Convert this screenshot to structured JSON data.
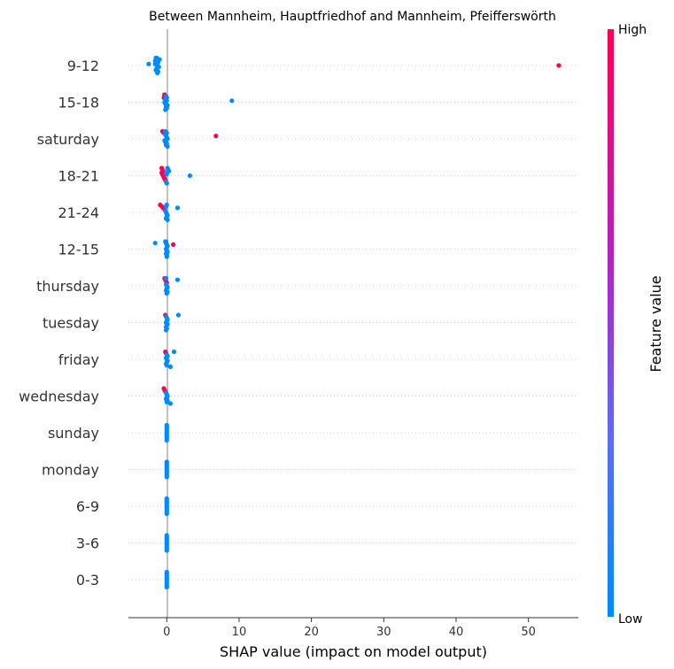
{
  "chart_data": {
    "type": "scatter",
    "subtype": "shap-beeswarm",
    "title": "Between Mannheim, Hauptfriedhof and Mannheim, Pfeifferswörth",
    "xlabel": "SHAP value (impact on model output)",
    "xlim": [
      -5.3,
      56.9
    ],
    "xticks": [
      0,
      10,
      20,
      30,
      40,
      50
    ],
    "colorbar": {
      "high_label": "High",
      "low_label": "Low",
      "title": "Feature value",
      "low_color": "#008bfb",
      "high_color": "#ff0052"
    },
    "features": [
      {
        "name": "9-12",
        "points": [
          [
            -1.5,
            0
          ],
          [
            -1.3,
            0
          ],
          [
            -1.4,
            0
          ],
          [
            -1.2,
            0
          ],
          [
            -1.6,
            0
          ],
          [
            -1.3,
            0
          ],
          [
            -1.1,
            0
          ],
          [
            -1.4,
            0
          ],
          [
            -1.5,
            0
          ],
          [
            -1.2,
            0
          ],
          [
            -1.3,
            0
          ],
          [
            -1.4,
            0
          ],
          [
            -1.0,
            0
          ],
          [
            -1.6,
            0
          ],
          [
            -1.3,
            0
          ],
          [
            -2.5,
            0
          ],
          [
            54.2,
            1
          ]
        ]
      },
      {
        "name": "15-18",
        "points": [
          [
            -0.3,
            1
          ],
          [
            -0.2,
            1
          ],
          [
            -0.4,
            1
          ],
          [
            -0.1,
            0
          ],
          [
            0.0,
            0
          ],
          [
            -0.3,
            0
          ],
          [
            -0.2,
            0
          ],
          [
            0.1,
            0
          ],
          [
            -0.1,
            0
          ],
          [
            0.0,
            0
          ],
          [
            -0.2,
            0
          ],
          [
            -0.3,
            1
          ],
          [
            -0.1,
            0
          ],
          [
            0.0,
            0
          ],
          [
            -0.2,
            0
          ],
          [
            9.0,
            0
          ]
        ]
      },
      {
        "name": "saturday",
        "points": [
          [
            -0.6,
            1
          ],
          [
            -0.4,
            1
          ],
          [
            -0.2,
            0
          ],
          [
            -0.1,
            0
          ],
          [
            0.0,
            0
          ],
          [
            0.1,
            0
          ],
          [
            -0.3,
            0
          ],
          [
            -0.2,
            0
          ],
          [
            0.0,
            0
          ],
          [
            -0.1,
            0
          ],
          [
            0.1,
            0
          ],
          [
            -0.2,
            0
          ],
          [
            0.0,
            0
          ],
          [
            -0.1,
            0
          ],
          [
            6.8,
            1
          ]
        ]
      },
      {
        "name": "18-21",
        "points": [
          [
            -0.7,
            1
          ],
          [
            -0.6,
            1
          ],
          [
            -0.5,
            1
          ],
          [
            -0.7,
            1
          ],
          [
            -0.6,
            1
          ],
          [
            -0.5,
            1
          ],
          [
            -0.4,
            1
          ],
          [
            -0.3,
            1
          ],
          [
            -0.2,
            1
          ],
          [
            -0.1,
            0
          ],
          [
            0.0,
            0
          ],
          [
            0.1,
            0
          ],
          [
            0.2,
            0
          ],
          [
            0.3,
            0
          ],
          [
            -0.1,
            0
          ],
          [
            0.0,
            0
          ],
          [
            3.2,
            0
          ]
        ]
      },
      {
        "name": "21-24",
        "points": [
          [
            -0.9,
            1
          ],
          [
            -0.7,
            1
          ],
          [
            -0.5,
            1
          ],
          [
            -0.3,
            1
          ],
          [
            -0.2,
            0
          ],
          [
            -0.1,
            0
          ],
          [
            0.0,
            0
          ],
          [
            0.1,
            0
          ],
          [
            0.0,
            0
          ],
          [
            -0.1,
            0
          ],
          [
            0.1,
            0
          ],
          [
            0.0,
            0
          ],
          [
            -0.1,
            0
          ],
          [
            1.5,
            0
          ]
        ]
      },
      {
        "name": "12-15",
        "points": [
          [
            -0.2,
            0
          ],
          [
            -0.1,
            0
          ],
          [
            0.0,
            0
          ],
          [
            0.1,
            0
          ],
          [
            0.0,
            0
          ],
          [
            -0.1,
            0
          ],
          [
            0.0,
            0
          ],
          [
            0.1,
            0
          ],
          [
            -0.1,
            0
          ],
          [
            0.0,
            0
          ],
          [
            0.0,
            0
          ],
          [
            -0.1,
            0
          ],
          [
            -1.6,
            0
          ],
          [
            0.9,
            1
          ]
        ]
      },
      {
        "name": "thursday",
        "points": [
          [
            -0.3,
            1
          ],
          [
            -0.2,
            1
          ],
          [
            -0.1,
            1
          ],
          [
            0.0,
            1
          ],
          [
            -0.1,
            0
          ],
          [
            0.0,
            0
          ],
          [
            0.1,
            0
          ],
          [
            0.0,
            0
          ],
          [
            -0.1,
            0
          ],
          [
            0.1,
            0
          ],
          [
            0.0,
            0
          ],
          [
            -0.1,
            0
          ],
          [
            1.5,
            0
          ]
        ]
      },
      {
        "name": "tuesday",
        "points": [
          [
            -0.2,
            1
          ],
          [
            -0.1,
            0
          ],
          [
            0.0,
            0
          ],
          [
            0.1,
            0
          ],
          [
            0.0,
            0
          ],
          [
            -0.1,
            0
          ],
          [
            0.1,
            0
          ],
          [
            0.0,
            0
          ],
          [
            -0.1,
            0
          ],
          [
            0.0,
            0
          ],
          [
            -0.1,
            0
          ],
          [
            1.6,
            0
          ]
        ]
      },
      {
        "name": "friday",
        "points": [
          [
            -0.2,
            1
          ],
          [
            -0.1,
            1
          ],
          [
            0.0,
            0
          ],
          [
            0.1,
            0
          ],
          [
            -0.1,
            0
          ],
          [
            0.0,
            0
          ],
          [
            0.1,
            0
          ],
          [
            0.0,
            0
          ],
          [
            -0.1,
            0
          ],
          [
            0.0,
            0
          ],
          [
            0.5,
            0
          ],
          [
            1.0,
            0
          ]
        ]
      },
      {
        "name": "wednesday",
        "points": [
          [
            -0.4,
            1
          ],
          [
            -0.3,
            1
          ],
          [
            -0.2,
            1
          ],
          [
            -0.1,
            0
          ],
          [
            0.0,
            0
          ],
          [
            0.1,
            0
          ],
          [
            0.0,
            0
          ],
          [
            -0.1,
            0
          ],
          [
            0.1,
            0
          ],
          [
            0.0,
            0
          ],
          [
            0.5,
            0
          ]
        ]
      },
      {
        "name": "sunday",
        "points": [
          [
            0.0,
            0
          ],
          [
            0.0,
            0
          ],
          [
            0.0,
            0
          ],
          [
            0.0,
            0
          ],
          [
            0.0,
            0
          ],
          [
            0.0,
            0
          ],
          [
            0.0,
            0
          ],
          [
            0.0,
            0
          ],
          [
            0.0,
            0
          ],
          [
            0.0,
            0
          ],
          [
            0.0,
            0
          ]
        ]
      },
      {
        "name": "monday",
        "points": [
          [
            0.0,
            0
          ],
          [
            0.0,
            0
          ],
          [
            0.0,
            0
          ],
          [
            0.0,
            0
          ],
          [
            0.0,
            0
          ],
          [
            0.0,
            0
          ],
          [
            0.0,
            0
          ],
          [
            0.0,
            0
          ],
          [
            0.0,
            0
          ],
          [
            0.0,
            0
          ],
          [
            0.0,
            0
          ]
        ]
      },
      {
        "name": "6-9",
        "points": [
          [
            0.0,
            0
          ],
          [
            0.0,
            0
          ],
          [
            0.0,
            0
          ],
          [
            0.0,
            0
          ],
          [
            0.0,
            0
          ],
          [
            0.0,
            0
          ],
          [
            0.0,
            0
          ],
          [
            0.0,
            0
          ],
          [
            0.0,
            0
          ],
          [
            0.0,
            0
          ],
          [
            0.0,
            0
          ]
        ]
      },
      {
        "name": "3-6",
        "points": [
          [
            0.0,
            0
          ],
          [
            0.0,
            0
          ],
          [
            0.0,
            0
          ],
          [
            0.0,
            0
          ],
          [
            0.0,
            0
          ],
          [
            0.0,
            0
          ],
          [
            0.0,
            0
          ],
          [
            0.0,
            0
          ],
          [
            0.0,
            0
          ],
          [
            0.0,
            0
          ],
          [
            0.0,
            0
          ]
        ]
      },
      {
        "name": "0-3",
        "points": [
          [
            0.0,
            0
          ],
          [
            0.0,
            0
          ],
          [
            0.0,
            0
          ],
          [
            0.0,
            0
          ],
          [
            0.0,
            0
          ],
          [
            0.0,
            0
          ],
          [
            0.0,
            0
          ],
          [
            0.0,
            0
          ],
          [
            0.0,
            0
          ],
          [
            0.0,
            0
          ],
          [
            0.0,
            0
          ]
        ]
      }
    ]
  }
}
